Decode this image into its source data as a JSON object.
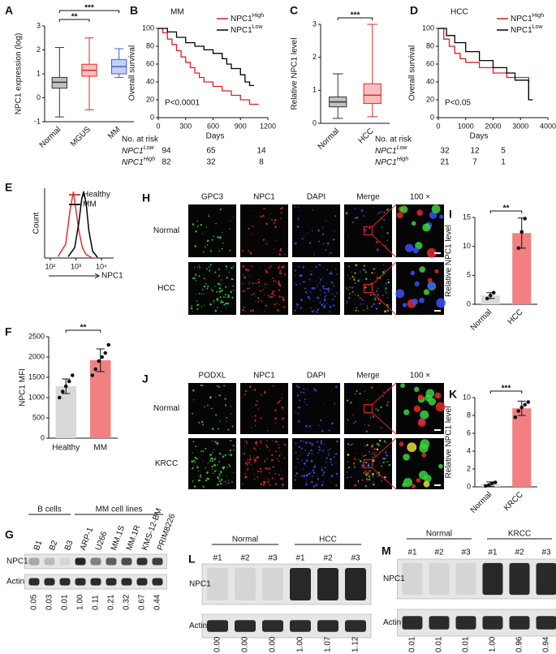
{
  "chart_data": [
    {
      "panel": "A",
      "type": "box",
      "ylabel": "NPC1 expression (log)",
      "categories": [
        "Normal",
        "MGUS",
        "MM"
      ],
      "colors": [
        "#333333",
        "#e02a2a",
        "#3f5fe0"
      ],
      "boxes": [
        {
          "whislo": -0.8,
          "q1": 0.4,
          "med": 0.65,
          "q3": 0.85,
          "whishi": 2.1
        },
        {
          "whislo": -0.5,
          "q1": 0.9,
          "med": 1.15,
          "q3": 1.4,
          "whishi": 2.5
        },
        {
          "whislo": 0.85,
          "q1": 1.0,
          "med": 1.3,
          "q3": 1.6,
          "whishi": 2.05
        }
      ],
      "ylim": [
        -1,
        3
      ],
      "yticks": [
        -1,
        0,
        1,
        2,
        3
      ],
      "annotations": [
        "**",
        "***"
      ]
    },
    {
      "panel": "B",
      "type": "survival",
      "title": "MM",
      "ylabel": "Overall survival",
      "xlim": [
        0,
        1200
      ],
      "xticks": [
        0,
        300,
        600,
        900,
        1200
      ],
      "ylim": [
        0,
        100
      ],
      "yticks": [
        0,
        20,
        40,
        60,
        80,
        100
      ],
      "annotation": "P<0.0001",
      "series": [
        {
          "name": "NPC1",
          "sup": "High",
          "color": "#e02020",
          "x": [
            0,
            50,
            50,
            100,
            100,
            150,
            150,
            200,
            200,
            250,
            250,
            300,
            300,
            350,
            350,
            400,
            400,
            450,
            450,
            500,
            500,
            600,
            600,
            700,
            700,
            800,
            800,
            900,
            900,
            1000,
            1000,
            1100
          ],
          "values": [
            100,
            100,
            95,
            95,
            88,
            88,
            82,
            82,
            75,
            75,
            68,
            68,
            62,
            62,
            56,
            56,
            50,
            50,
            45,
            45,
            40,
            40,
            35,
            35,
            30,
            30,
            25,
            25,
            20,
            20,
            15,
            15
          ]
        },
        {
          "name": "NPC1",
          "sup": "Low",
          "color": "#000000",
          "x": [
            0,
            100,
            100,
            200,
            200,
            300,
            300,
            400,
            400,
            500,
            500,
            600,
            600,
            700,
            700,
            750,
            750,
            800,
            800,
            900,
            900,
            950,
            950,
            1000,
            1000,
            1050
          ],
          "values": [
            100,
            100,
            96,
            96,
            90,
            90,
            84,
            84,
            80,
            80,
            76,
            76,
            72,
            72,
            66,
            66,
            60,
            60,
            55,
            55,
            48,
            48,
            40,
            40,
            36,
            36
          ]
        }
      ],
      "risk_table": {
        "title": "No. at risk",
        "xlabel": "Days",
        "rows": [
          {
            "name": "NPC1",
            "sup": "Low",
            "color": "#000000",
            "values": [
              94,
              65,
              14
            ]
          },
          {
            "name": "NPC1",
            "sup": "High",
            "color": "#e02020",
            "values": [
              82,
              32,
              8
            ]
          }
        ]
      }
    },
    {
      "panel": "C",
      "type": "box",
      "ylabel": "Relative NPC1 level",
      "categories": [
        "Normal",
        "HCC"
      ],
      "colors": [
        "#333333",
        "#e02a2a"
      ],
      "boxes": [
        {
          "whislo": 0.15,
          "q1": 0.5,
          "med": 0.65,
          "q3": 0.8,
          "whishi": 1.5
        },
        {
          "whislo": 0.2,
          "q1": 0.6,
          "med": 0.85,
          "q3": 1.2,
          "whishi": 3.0
        }
      ],
      "ylim": [
        0,
        3
      ],
      "yticks": [
        0,
        1,
        2,
        3
      ],
      "annotations": [
        "***"
      ]
    },
    {
      "panel": "D",
      "type": "survival",
      "title": "HCC",
      "ylabel": "Overall survival",
      "xlim": [
        0,
        4000
      ],
      "xticks": [
        0,
        1000,
        2000,
        3000,
        4000
      ],
      "ylim": [
        0,
        100
      ],
      "yticks": [
        0,
        20,
        40,
        60,
        80,
        100
      ],
      "annotation": "P<0.05",
      "series": [
        {
          "name": "NPC1",
          "sup": "High",
          "color": "#e02020",
          "x": [
            0,
            200,
            200,
            400,
            400,
            600,
            600,
            800,
            800,
            1000,
            1000,
            1500,
            1500,
            2000,
            2000,
            2500,
            2500,
            3300,
            3300
          ],
          "values": [
            100,
            100,
            88,
            88,
            80,
            80,
            72,
            72,
            66,
            66,
            62,
            62,
            56,
            56,
            50,
            50,
            45,
            45,
            20
          ]
        },
        {
          "name": "NPC1",
          "sup": "Low",
          "color": "#000000",
          "x": [
            0,
            300,
            300,
            600,
            600,
            1000,
            1000,
            1500,
            1500,
            2000,
            2000,
            2500,
            2500,
            2800,
            2800,
            3300,
            3300,
            3450
          ],
          "values": [
            100,
            100,
            92,
            92,
            84,
            84,
            74,
            74,
            64,
            64,
            56,
            56,
            50,
            50,
            42,
            42,
            20,
            20
          ]
        }
      ],
      "risk_table": {
        "title": "No. at risk",
        "xlabel": "Days",
        "rows": [
          {
            "name": "NPC1",
            "sup": "Low",
            "color": "#000000",
            "values": [
              32,
              12,
              5
            ]
          },
          {
            "name": "NPC1",
            "sup": "High",
            "color": "#e02020",
            "values": [
              21,
              7,
              1
            ]
          }
        ]
      }
    },
    {
      "panel": "E",
      "type": "line",
      "xscale": "log",
      "ylabel": "Count",
      "xlabel": "NPC1",
      "xlim": [
        60,
        30000
      ],
      "xticks": [
        {
          "value": 100,
          "label": "10²"
        },
        {
          "value": 1000,
          "label": "10³"
        },
        {
          "value": 10000,
          "label": "10⁴"
        }
      ],
      "ylim": [
        0,
        100
      ],
      "series": [
        {
          "name": "Healthy",
          "color": "#e03030",
          "x": [
            200,
            400,
            600,
            800,
            1000,
            1300,
            1800,
            2500,
            4000
          ],
          "values": [
            2,
            20,
            70,
            95,
            70,
            40,
            15,
            5,
            1
          ]
        },
        {
          "name": "MM",
          "color": "#000000",
          "x": [
            500,
            900,
            1300,
            1700,
            2000,
            2500,
            3200,
            4500,
            7000
          ],
          "values": [
            2,
            15,
            50,
            85,
            95,
            80,
            40,
            10,
            1
          ]
        }
      ]
    },
    {
      "panel": "F",
      "type": "bar",
      "ylabel": "NPC1 MFI",
      "categories": [
        "Healthy",
        "MM"
      ],
      "values": [
        1280,
        1920
      ],
      "errors": [
        180,
        280
      ],
      "colors": [
        "#d9d9d9",
        "#f28080"
      ],
      "points": [
        [
          1000,
          1150,
          1280,
          1400,
          1550
        ],
        [
          1550,
          1700,
          1900,
          2000,
          2100,
          2300
        ]
      ],
      "ylim": [
        0,
        2500
      ],
      "yticks": [
        0,
        500,
        1000,
        1500,
        2000,
        2500
      ],
      "annotations": [
        "**"
      ]
    },
    {
      "panel": "I",
      "type": "bar",
      "ylabel": "Relative NPC1 level",
      "categories": [
        "Normal",
        "HCC"
      ],
      "values": [
        1.5,
        12.3
      ],
      "errors": [
        0.5,
        2.6
      ],
      "colors": [
        "#d9d9d9",
        "#f28080"
      ],
      "points": [
        [
          1.0,
          1.5,
          2.0
        ],
        [
          9.7,
          12.5,
          14.8
        ]
      ],
      "ylim": [
        0,
        15
      ],
      "yticks": [
        0,
        5,
        10,
        15
      ],
      "annotations": [
        "**"
      ]
    },
    {
      "panel": "K",
      "type": "bar",
      "ylabel": "Relative NPC1 level",
      "categories": [
        "Normal",
        "KRCC"
      ],
      "values": [
        0.3,
        8.8
      ],
      "errors": [
        0.25,
        0.8
      ],
      "colors": [
        "#d9d9d9",
        "#f28080"
      ],
      "points": [
        [
          0.1,
          0.2,
          0.4,
          0.5
        ],
        [
          7.8,
          8.5,
          8.9,
          9.2,
          9.5
        ]
      ],
      "ylim": [
        0,
        10
      ],
      "yticks": [
        0,
        2,
        4,
        6,
        8,
        10
      ],
      "annotations": [
        "***"
      ]
    }
  ],
  "images": [
    {
      "panel": "H",
      "channels": [
        "GPC3",
        "NPC1",
        "DAPI",
        "Merge",
        "100 ×"
      ],
      "rows": [
        "Normal",
        "HCC"
      ]
    },
    {
      "panel": "J",
      "channels": [
        "PODXL",
        "NPC1",
        "DAPI",
        "Merge",
        "100 ×"
      ],
      "rows": [
        "Normal",
        "KRCC"
      ]
    }
  ],
  "blots": [
    {
      "panel": "G",
      "groups": [
        {
          "name": "B cells",
          "lanes": [
            "B1",
            "B2",
            "B3"
          ]
        },
        {
          "name": "MM cell lines",
          "lanes": [
            "ARP-1",
            "U266",
            "MM.1S",
            "MM.1R",
            "KMS-12-BM",
            "PRIM8226"
          ]
        }
      ],
      "rows": [
        "NPC1",
        "Actin"
      ],
      "quantities": [
        "0.05",
        "0.03",
        "0.01",
        "1.00",
        "0.11",
        "0.21",
        "0.32",
        "0.67",
        "0.44"
      ]
    },
    {
      "panel": "L",
      "groups": [
        {
          "name": "Normal",
          "lanes": [
            "#1",
            "#2",
            "#3"
          ]
        },
        {
          "name": "HCC",
          "lanes": [
            "#1",
            "#2",
            "#3"
          ]
        }
      ],
      "rows": [
        "NPC1",
        "Actin"
      ],
      "quantities": [
        "0.00",
        "0.00",
        "0.00",
        "1.00",
        "1.07",
        "1.12"
      ]
    },
    {
      "panel": "M",
      "groups": [
        {
          "name": "Normal",
          "lanes": [
            "#1",
            "#2",
            "#3"
          ]
        },
        {
          "name": "KRCC",
          "lanes": [
            "#1",
            "#2",
            "#3"
          ]
        }
      ],
      "rows": [
        "NPC1",
        "Actin"
      ],
      "quantities": [
        "0.01",
        "0.01",
        "0.01",
        "1.00",
        "0.96",
        "0.94"
      ]
    }
  ]
}
